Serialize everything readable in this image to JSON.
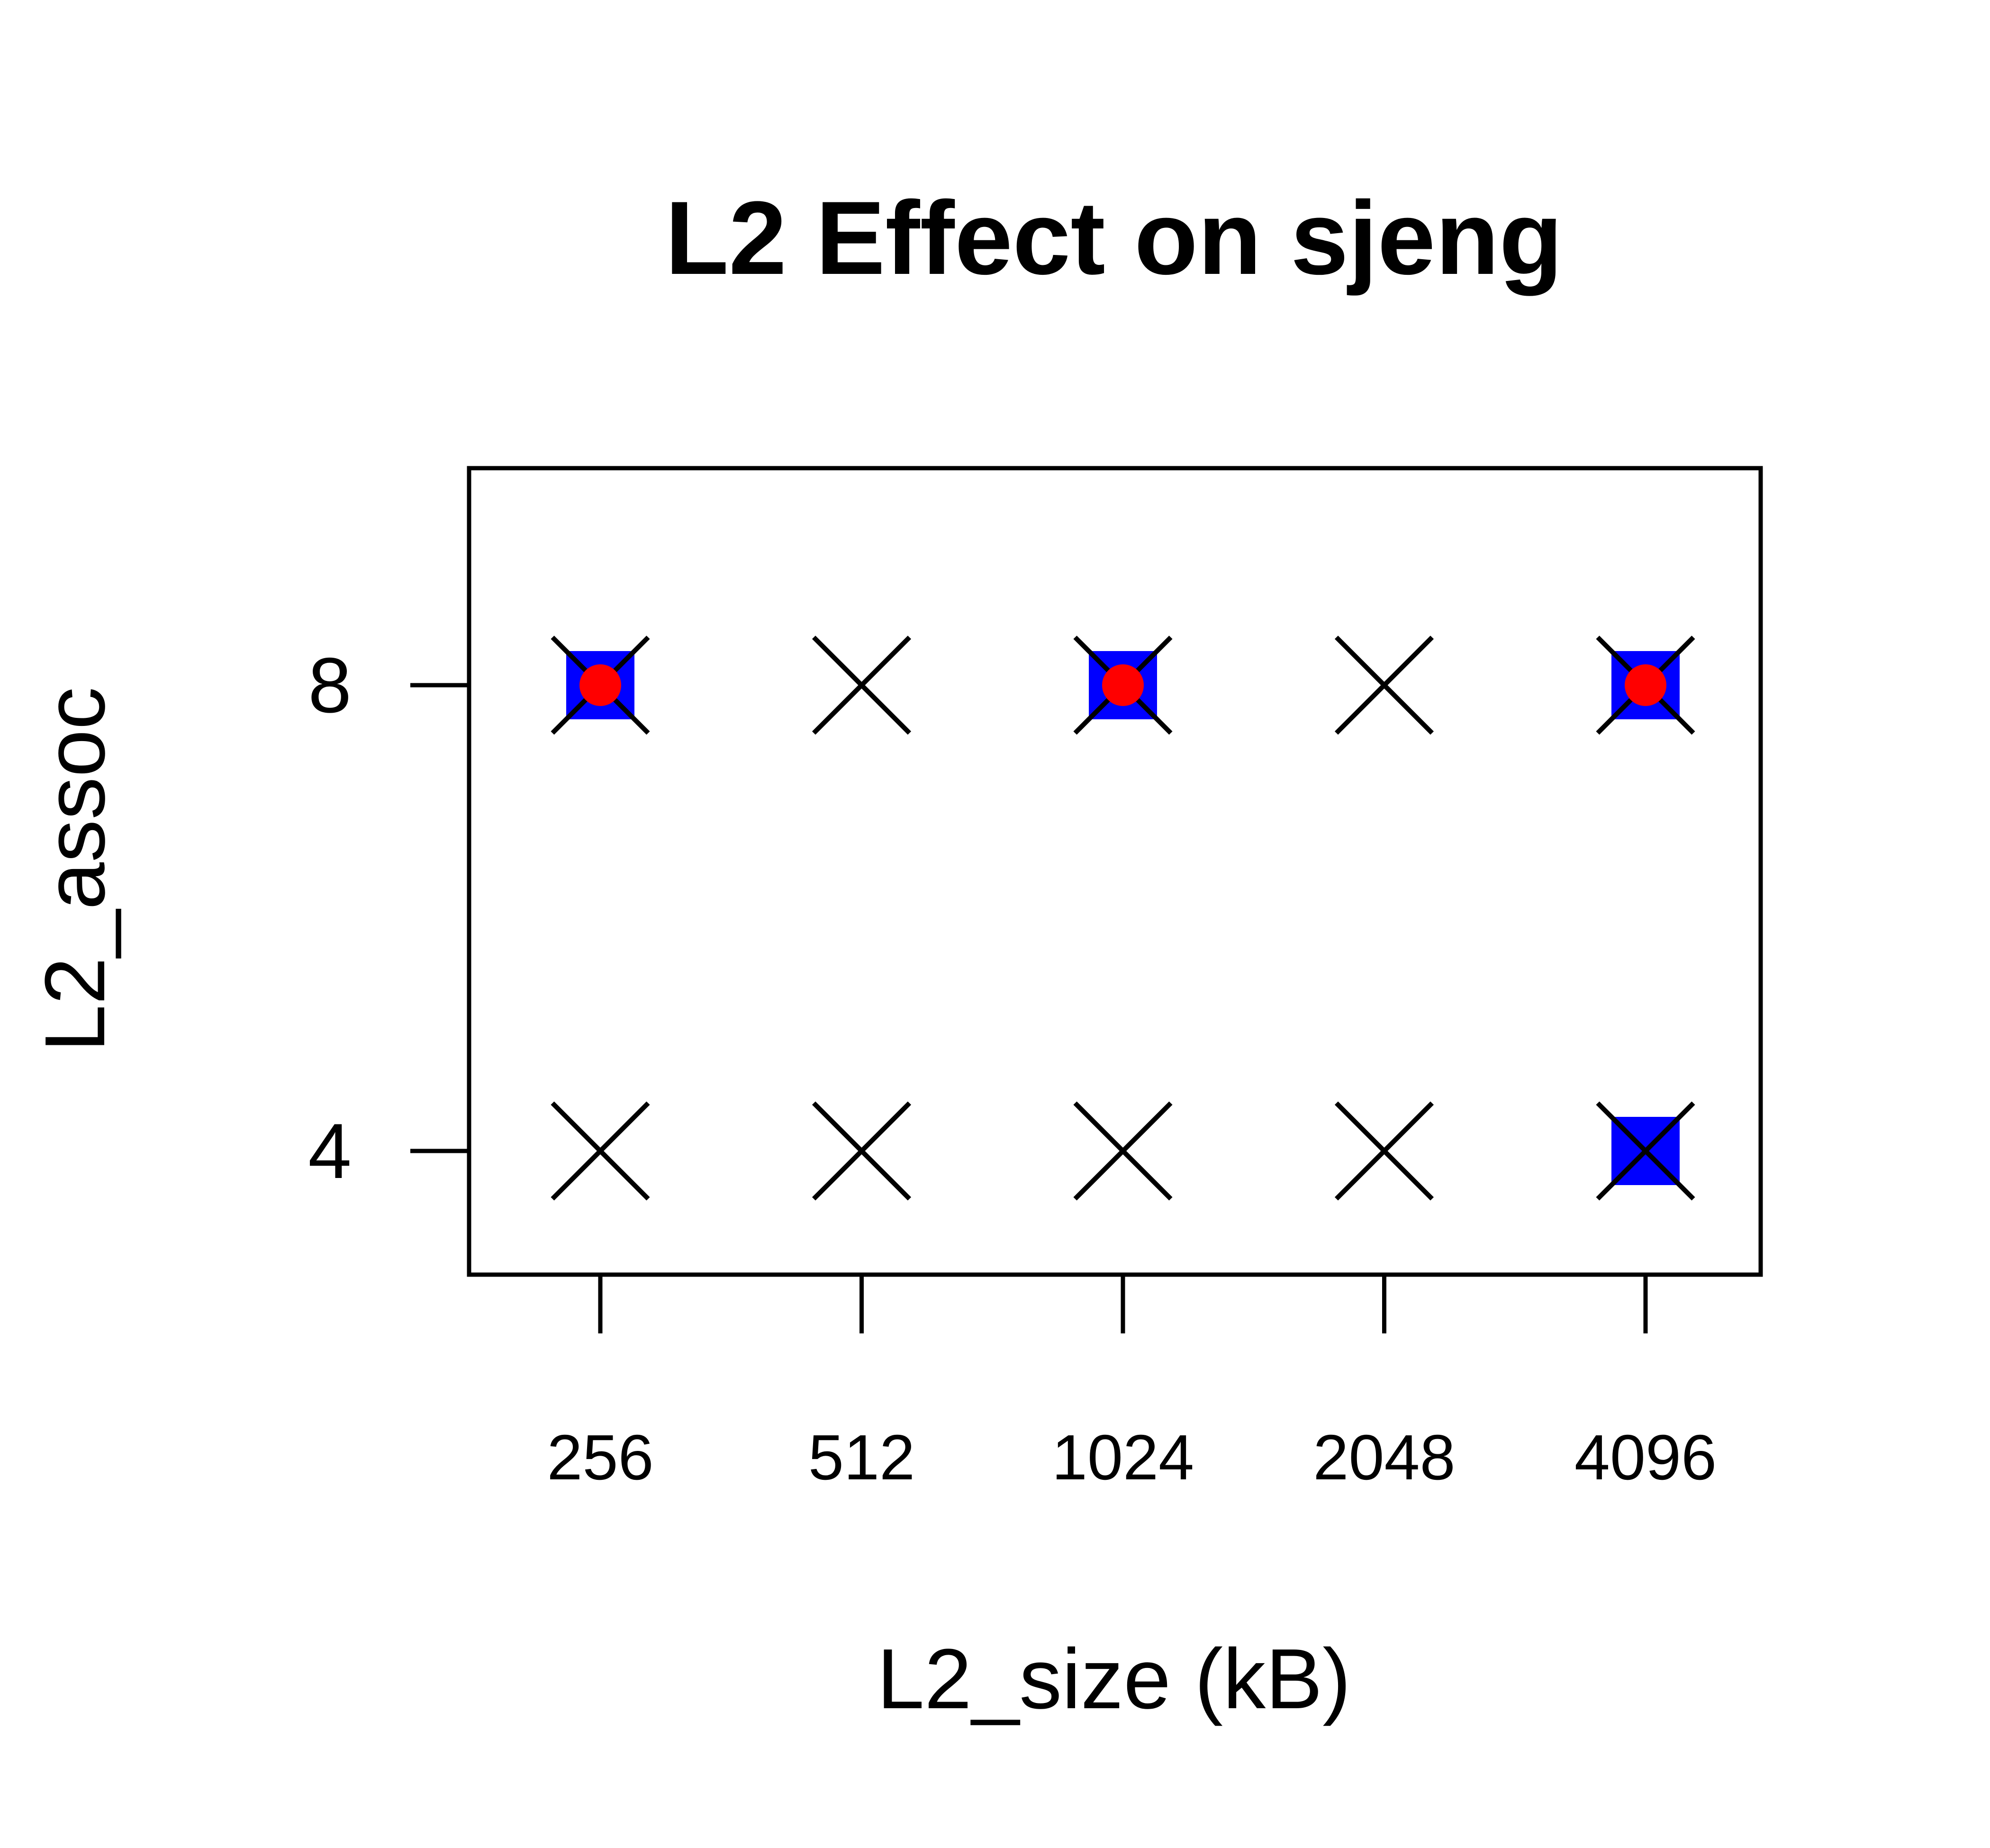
{
  "chart_data": {
    "type": "scatter",
    "title": "L2 Effect on sjeng",
    "xlabel": "L2_size (kB)",
    "ylabel": "L2_assoc",
    "x_scale": "categorical",
    "categories": [
      "256",
      "512",
      "1024",
      "2048",
      "4096"
    ],
    "y_ticks": [
      4,
      8
    ],
    "y_tick_labels": [
      "4",
      "8"
    ],
    "ylim": [
      3.2,
      9.6
    ],
    "grid": false,
    "legend": "none",
    "series": [
      {
        "marker": "x-cross",
        "color": "#000000",
        "points": [
          {
            "x": "256",
            "y": 8
          },
          {
            "x": "512",
            "y": 8
          },
          {
            "x": "1024",
            "y": 8
          },
          {
            "x": "2048",
            "y": 8
          },
          {
            "x": "4096",
            "y": 8
          },
          {
            "x": "256",
            "y": 4
          },
          {
            "x": "512",
            "y": 4
          },
          {
            "x": "1024",
            "y": 4
          },
          {
            "x": "2048",
            "y": 4
          },
          {
            "x": "4096",
            "y": 4
          }
        ]
      },
      {
        "marker": "filled-square",
        "color": "#0000ff",
        "points": [
          {
            "x": "256",
            "y": 8
          },
          {
            "x": "1024",
            "y": 8
          },
          {
            "x": "4096",
            "y": 8
          },
          {
            "x": "4096",
            "y": 4
          }
        ]
      },
      {
        "marker": "filled-circle",
        "color": "#ff0000",
        "points": [
          {
            "x": "256",
            "y": 8
          },
          {
            "x": "1024",
            "y": 8
          },
          {
            "x": "4096",
            "y": 8
          }
        ]
      }
    ]
  }
}
